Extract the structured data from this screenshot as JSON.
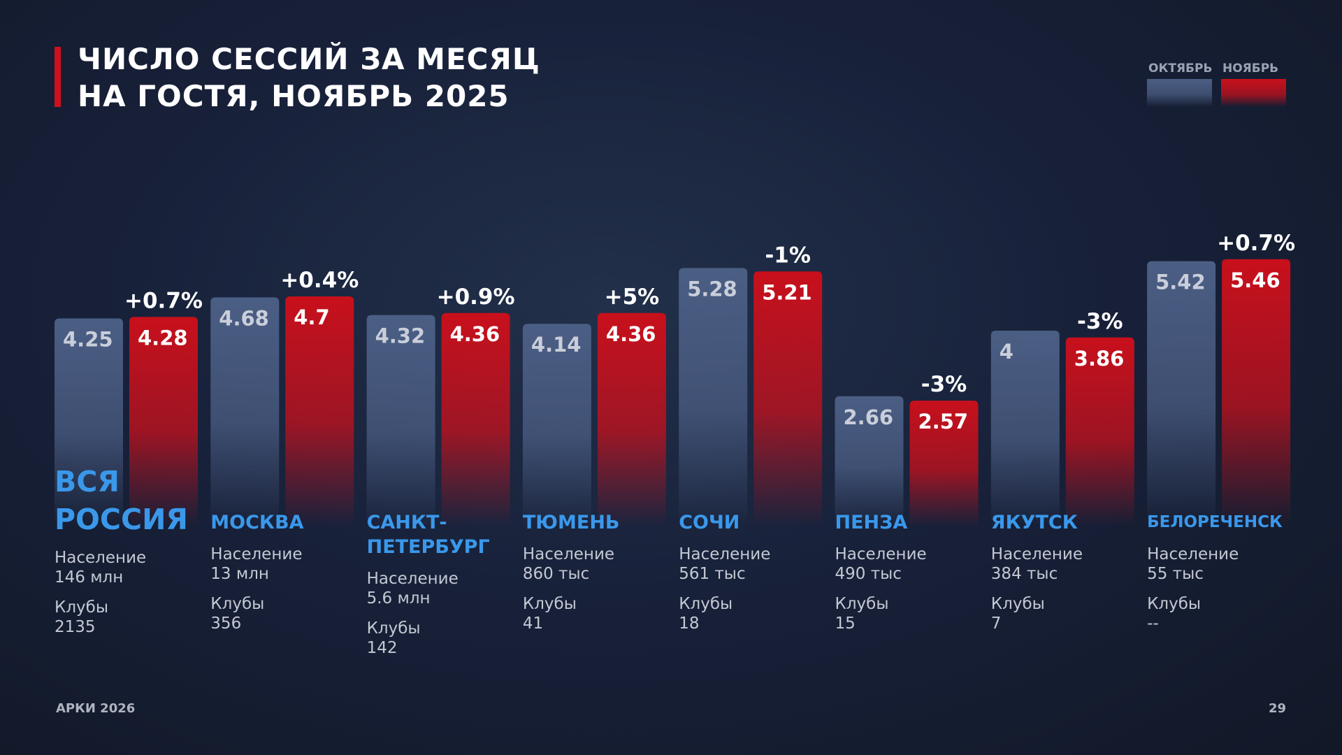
{
  "chart_data": {
    "type": "bar",
    "title": [
      "ЧИСЛО СЕССИЙ ЗА МЕСЯЦ",
      "НА ГОСТЯ, НОЯБРЬ 2025"
    ],
    "categories": [
      "ВСЯ РОССИЯ",
      "МОСКВА",
      "САНКТ-ПЕТЕРБУРГ",
      "ТЮМЕНЬ",
      "СОЧИ",
      "ПЕНЗА",
      "ЯКУТСК",
      "БЕЛОРЕЧЕНСК"
    ],
    "series": [
      {
        "name": "ОКТЯБРЬ",
        "color": "#4b5e84",
        "values": [
          4.25,
          4.68,
          4.32,
          4.14,
          5.28,
          2.66,
          4,
          5.42
        ]
      },
      {
        "name": "НОЯБРЬ",
        "color": "#c8101c",
        "values": [
          4.28,
          4.7,
          4.36,
          4.36,
          5.21,
          2.57,
          3.86,
          5.46
        ]
      }
    ],
    "changes": [
      "+0.7%",
      "+0.4%",
      "+0.9%",
      "+5%",
      "-1%",
      "-3%",
      "-3%",
      "+0.7%"
    ],
    "population_label": "Население",
    "population": [
      "146 млн",
      "13 млн",
      "5.6 млн",
      "860 тыс",
      "561 тыс",
      "490 тыс",
      "384 тыс",
      "55 тыс"
    ],
    "clubs_label": "Клубы",
    "clubs": [
      "2135",
      "356",
      "142",
      "41",
      "18",
      "15",
      "7",
      "--"
    ],
    "footer": "АРКИ 2026",
    "page_number": "29"
  }
}
